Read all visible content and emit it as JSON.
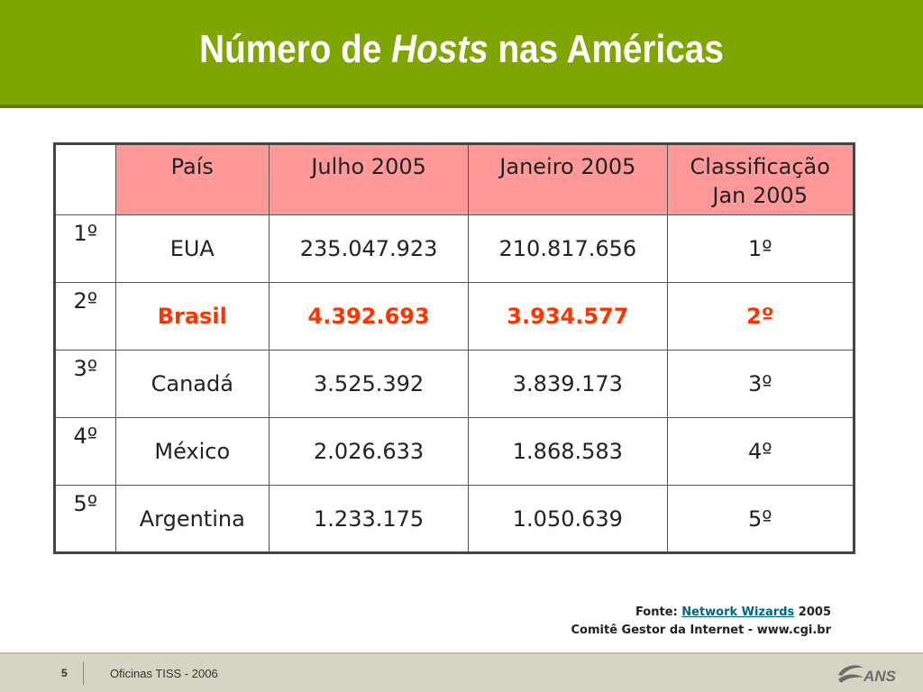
{
  "slide": {
    "title_pre": "Número de ",
    "title_em": "Hosts",
    "title_post": " nas Américas"
  },
  "table": {
    "headers": [
      "",
      "País",
      "Julho 2005",
      "Janeiro 2005",
      "Classificação",
      "Jan 2005"
    ],
    "rows": [
      {
        "rank": "1º",
        "country": "EUA",
        "jul2005": "235.047.923",
        "jan2005": "210.817.656",
        "class": "1º"
      },
      {
        "rank": "2º",
        "country": "Brasil",
        "jul2005": "4.392.693",
        "jan2005": "3.934.577",
        "class": "2º"
      },
      {
        "rank": "3º",
        "country": "Canadá",
        "jul2005": "3.525.392",
        "jan2005": "3.839.173",
        "class": "3º"
      },
      {
        "rank": "4º",
        "country": "México",
        "jul2005": "2.026.633",
        "jan2005": "1.868.583",
        "class": "4º"
      },
      {
        "rank": "5º",
        "country": "Argentina",
        "jul2005": "1.233.175",
        "jan2005": "1.050.639",
        "class": "5º"
      }
    ]
  },
  "source": {
    "prefix": "Fonte: ",
    "link": "Network Wizards",
    "suffix": " 2005",
    "line2": "Comitê Gestor da Internet - www.cgi.br"
  },
  "footer": {
    "page": "5",
    "text": "Oficinas TISS - 2006",
    "logo_text": "ANS"
  },
  "colors": {
    "header_bg": "#7fa600",
    "table_header_bg": "#ff9999",
    "highlight": "#ff3300",
    "link": "#006688"
  }
}
